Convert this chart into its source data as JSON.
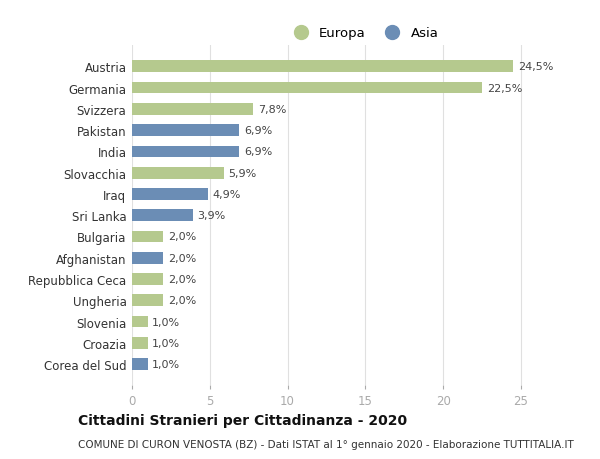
{
  "categories": [
    "Austria",
    "Germania",
    "Svizzera",
    "Pakistan",
    "India",
    "Slovacchia",
    "Iraq",
    "Sri Lanka",
    "Bulgaria",
    "Afghanistan",
    "Repubblica Ceca",
    "Ungheria",
    "Slovenia",
    "Croazia",
    "Corea del Sud"
  ],
  "values": [
    24.5,
    22.5,
    7.8,
    6.9,
    6.9,
    5.9,
    4.9,
    3.9,
    2.0,
    2.0,
    2.0,
    2.0,
    1.0,
    1.0,
    1.0
  ],
  "labels": [
    "24,5%",
    "22,5%",
    "7,8%",
    "6,9%",
    "6,9%",
    "5,9%",
    "4,9%",
    "3,9%",
    "2,0%",
    "2,0%",
    "2,0%",
    "2,0%",
    "1,0%",
    "1,0%",
    "1,0%"
  ],
  "continents": [
    "Europa",
    "Europa",
    "Europa",
    "Asia",
    "Asia",
    "Europa",
    "Asia",
    "Asia",
    "Europa",
    "Asia",
    "Europa",
    "Europa",
    "Europa",
    "Europa",
    "Asia"
  ],
  "europa_color": "#b5c98e",
  "asia_color": "#6b8db5",
  "background_color": "#ffffff",
  "grid_color": "#e0e0e0",
  "title_line1": "Cittadini Stranieri per Cittadinanza - 2020",
  "title_line2": "COMUNE DI CURON VENOSTA (BZ) - Dati ISTAT al 1° gennaio 2020 - Elaborazione TUTTITALIA.IT",
  "xlim": [
    0,
    27
  ],
  "xticks": [
    0,
    5,
    10,
    15,
    20,
    25
  ],
  "legend_labels": [
    "Europa",
    "Asia"
  ],
  "bar_height": 0.55
}
